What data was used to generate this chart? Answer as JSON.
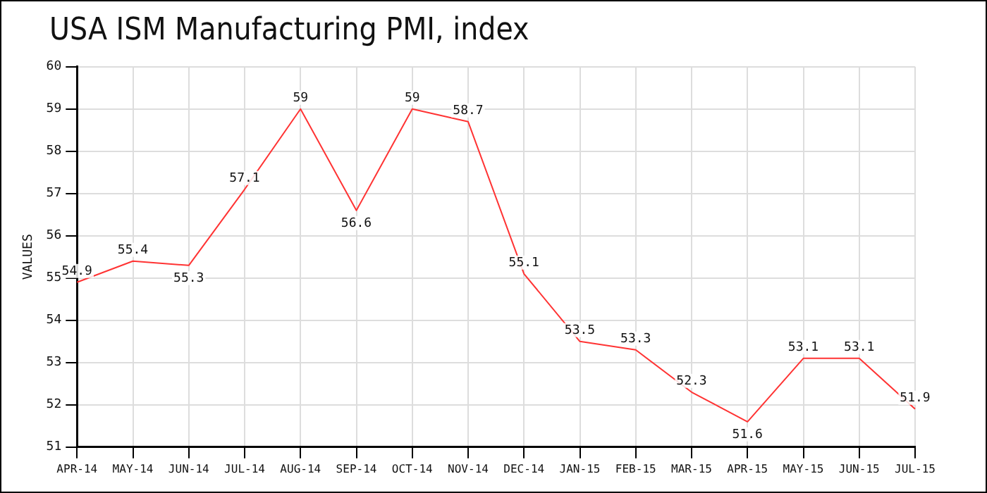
{
  "chart_data": {
    "type": "line",
    "title": "USA ISM Manufacturing PMI, index",
    "ylabel": "VALUES",
    "categories": [
      "APR-14",
      "MAY-14",
      "JUN-14",
      "JUL-14",
      "AUG-14",
      "SEP-14",
      "OCT-14",
      "NOV-14",
      "DEC-14",
      "JAN-15",
      "FEB-15",
      "MAR-15",
      "APR-15",
      "MAY-15",
      "JUN-15",
      "JUL-15"
    ],
    "series": [
      {
        "color": "#ff3333",
        "values": [
          54.9,
          55.4,
          55.3,
          57.1,
          59,
          56.6,
          59,
          58.7,
          55.1,
          53.5,
          53.3,
          52.3,
          51.6,
          53.1,
          53.1,
          51.9
        ]
      }
    ],
    "ylim": [
      51,
      60
    ],
    "yticks": [
      51,
      52,
      53,
      54,
      55,
      56,
      57,
      58,
      59,
      60
    ],
    "grid": true,
    "legend": false,
    "marker": "none",
    "line_style": "solid",
    "data_labels": true
  }
}
